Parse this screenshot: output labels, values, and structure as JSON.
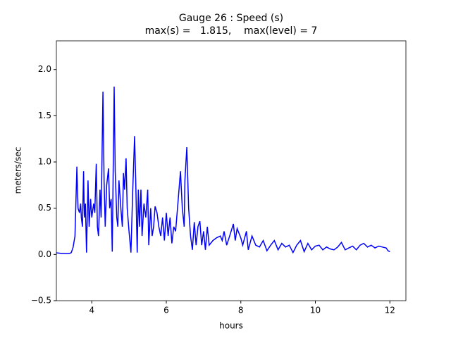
{
  "chart_data": {
    "type": "line",
    "title": "Gauge 26 : Speed (s)",
    "subtitle": "max(s) =   1.815,    max(level) = 7",
    "x_label": "hours",
    "y_label": "meters/sec",
    "xlim": [
      3.05,
      12.43
    ],
    "ylim": [
      -0.5,
      2.31
    ],
    "xticks": [
      4,
      6,
      8,
      10,
      12
    ],
    "yticks": [
      {
        "value": -0.5,
        "label": "−0.5"
      },
      {
        "value": 0,
        "label": "0.0"
      },
      0.5,
      {
        "value": 1,
        "label": "1.0"
      },
      1.5,
      {
        "value": 2,
        "label": "2.0"
      }
    ],
    "series": [
      {
        "color": "#0000ff",
        "x": [
          3.0,
          3.2,
          3.4,
          3.45,
          3.5,
          3.55,
          3.6,
          3.63,
          3.67,
          3.7,
          3.72,
          3.75,
          3.78,
          3.8,
          3.83,
          3.86,
          3.9,
          3.93,
          3.97,
          4.0,
          4.05,
          4.08,
          4.12,
          4.15,
          4.18,
          4.22,
          4.25,
          4.3,
          4.33,
          4.36,
          4.4,
          4.45,
          4.48,
          4.52,
          4.55,
          4.6,
          4.63,
          4.67,
          4.7,
          4.73,
          4.78,
          4.82,
          4.85,
          4.88,
          4.92,
          4.95,
          5.0,
          5.05,
          5.1,
          5.15,
          5.18,
          5.22,
          5.25,
          5.28,
          5.32,
          5.35,
          5.4,
          5.45,
          5.5,
          5.53,
          5.58,
          5.62,
          5.66,
          5.7,
          5.75,
          5.8,
          5.85,
          5.9,
          5.95,
          6.0,
          6.05,
          6.1,
          6.15,
          6.2,
          6.25,
          6.3,
          6.38,
          6.43,
          6.48,
          6.5,
          6.55,
          6.6,
          6.65,
          6.7,
          6.75,
          6.8,
          6.85,
          6.9,
          6.95,
          7.0,
          7.05,
          7.1,
          7.15,
          7.25,
          7.35,
          7.45,
          7.5,
          7.55,
          7.62,
          7.7,
          7.8,
          7.85,
          7.9,
          8.0,
          8.05,
          8.15,
          8.2,
          8.3,
          8.4,
          8.5,
          8.6,
          8.7,
          8.8,
          8.9,
          9.0,
          9.1,
          9.2,
          9.3,
          9.4,
          9.5,
          9.6,
          9.7,
          9.8,
          9.9,
          10.0,
          10.1,
          10.2,
          10.3,
          10.4,
          10.5,
          10.6,
          10.7,
          10.8,
          10.9,
          11.0,
          11.1,
          11.2,
          11.3,
          11.4,
          11.5,
          11.6,
          11.7,
          11.8,
          11.9,
          11.95,
          12.0
        ],
        "values": [
          0.02,
          0.01,
          0.01,
          0.02,
          0.08,
          0.2,
          0.95,
          0.5,
          0.45,
          0.55,
          0.4,
          0.3,
          0.9,
          0.4,
          0.55,
          0.02,
          0.8,
          0.3,
          0.6,
          0.4,
          0.55,
          0.45,
          0.98,
          0.3,
          0.2,
          0.7,
          0.4,
          1.76,
          0.8,
          0.3,
          0.75,
          0.93,
          0.5,
          0.6,
          0.03,
          1.815,
          0.9,
          0.4,
          0.3,
          0.8,
          0.5,
          0.3,
          0.88,
          0.7,
          1.04,
          0.5,
          0.25,
          0.02,
          0.7,
          1.28,
          0.8,
          0.02,
          0.7,
          0.3,
          0.7,
          0.2,
          0.55,
          0.4,
          0.7,
          0.1,
          0.5,
          0.2,
          0.3,
          0.52,
          0.45,
          0.3,
          0.2,
          0.4,
          0.15,
          0.45,
          0.2,
          0.4,
          0.12,
          0.3,
          0.25,
          0.5,
          0.9,
          0.5,
          0.3,
          0.8,
          1.16,
          0.5,
          0.2,
          0.05,
          0.35,
          0.1,
          0.3,
          0.36,
          0.1,
          0.25,
          0.05,
          0.3,
          0.1,
          0.15,
          0.18,
          0.2,
          0.15,
          0.25,
          0.1,
          0.2,
          0.33,
          0.15,
          0.28,
          0.18,
          0.1,
          0.25,
          0.05,
          0.2,
          0.1,
          0.08,
          0.15,
          0.04,
          0.1,
          0.15,
          0.05,
          0.12,
          0.08,
          0.1,
          0.02,
          0.1,
          0.15,
          0.03,
          0.12,
          0.05,
          0.09,
          0.1,
          0.05,
          0.08,
          0.06,
          0.05,
          0.08,
          0.13,
          0.05,
          0.07,
          0.09,
          0.05,
          0.1,
          0.12,
          0.08,
          0.1,
          0.07,
          0.09,
          0.08,
          0.07,
          0.04,
          0.03
        ]
      }
    ]
  }
}
